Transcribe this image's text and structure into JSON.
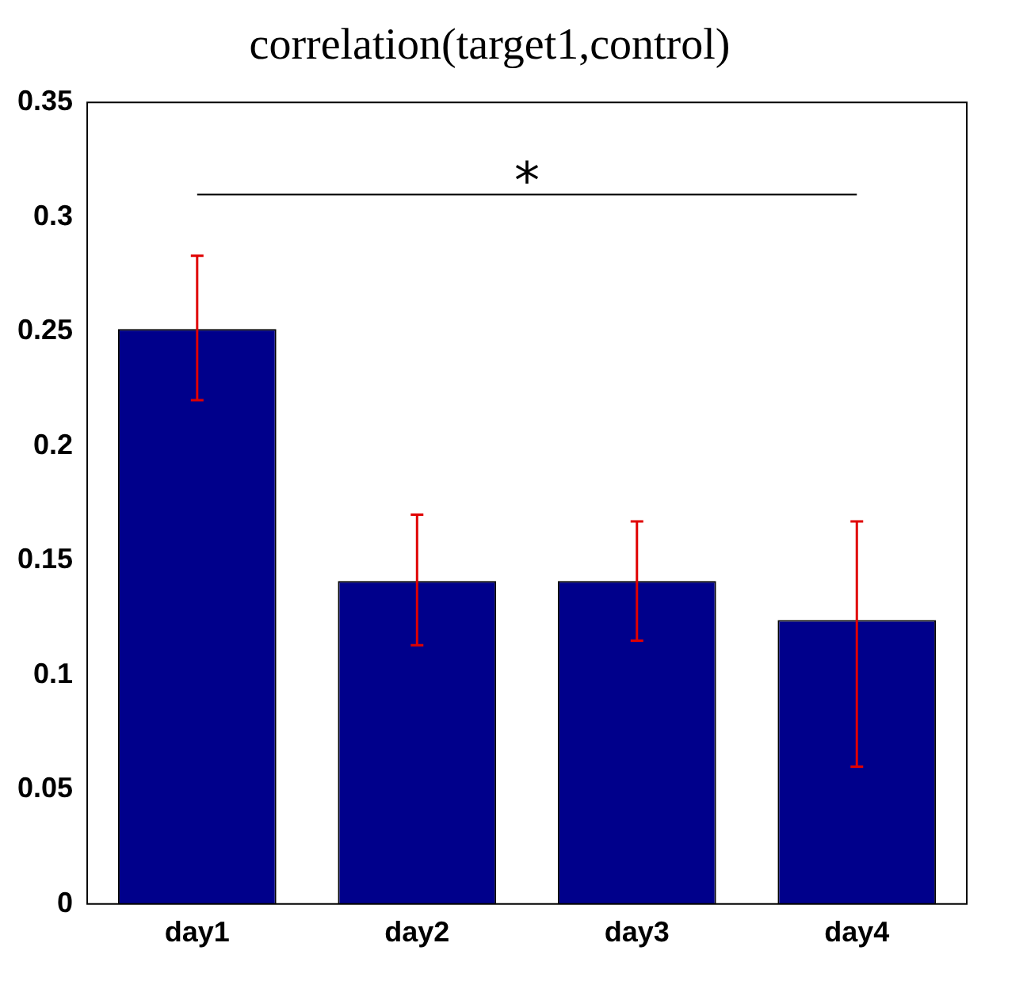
{
  "chart_data": {
    "type": "bar",
    "title": "correlation(target1,control)",
    "categories": [
      "day1",
      "day2",
      "day3",
      "day4"
    ],
    "values": [
      0.251,
      0.141,
      0.141,
      0.124
    ],
    "errors": [
      [
        0.22,
        0.283
      ],
      [
        0.113,
        0.17
      ],
      [
        0.115,
        0.167
      ],
      [
        0.06,
        0.167
      ]
    ],
    "color": "#00008b",
    "ylim": [
      0,
      0.35
    ],
    "yticks": [
      0,
      0.05,
      0.1,
      0.15,
      0.2,
      0.25,
      0.3,
      0.35
    ],
    "grid": false,
    "legend": false,
    "annotations": [
      "*"
    ]
  }
}
